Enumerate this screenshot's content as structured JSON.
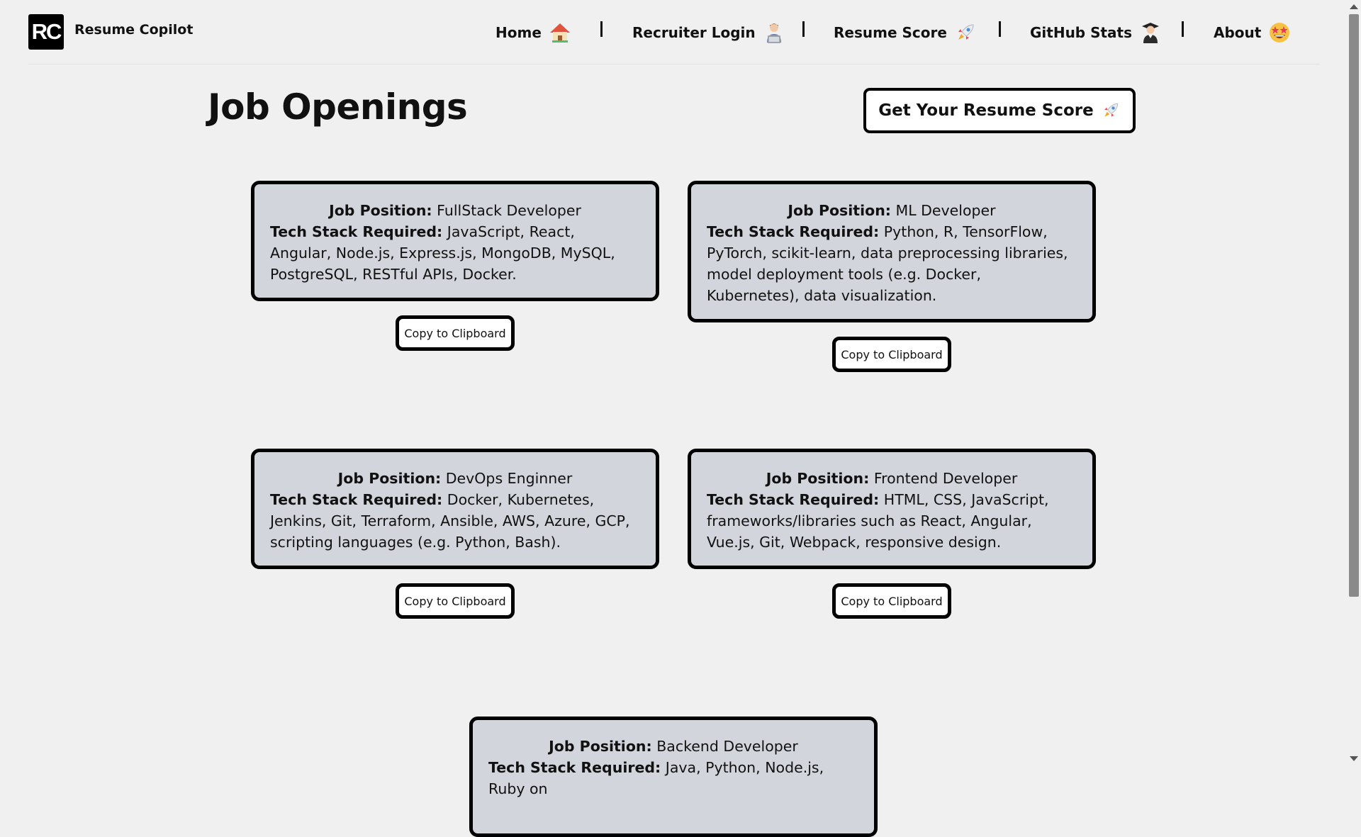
{
  "brand": {
    "logo_text": "RC",
    "name": "Resume Copilot"
  },
  "nav": {
    "items": [
      {
        "label": "Home",
        "icon": "house-emoji"
      },
      {
        "label": "Recruiter Login",
        "icon": "technologist-emoji"
      },
      {
        "label": "Resume Score",
        "icon": "rocket-emoji"
      },
      {
        "label": "GitHub Stats",
        "icon": "graduate-emoji"
      },
      {
        "label": "About",
        "icon": "star-struck-emoji"
      }
    ],
    "separator": "|"
  },
  "main": {
    "title": "Job Openings",
    "score_button": {
      "label": "Get Your Resume Score",
      "icon": "rocket-emoji"
    }
  },
  "labels": {
    "position_prefix": "Job Position:",
    "stack_prefix": "Tech Stack Required:",
    "copy": "Copy to Clipboard"
  },
  "jobs": [
    {
      "position": "FullStack Developer",
      "stack": "JavaScript, React, Angular, Node.js, Express.js, MongoDB, MySQL, PostgreSQL, RESTful APIs, Docker."
    },
    {
      "position": "ML Developer",
      "stack": "Python, R, TensorFlow, PyTorch, scikit-learn, data preprocessing libraries, model deployment tools (e.g. Docker, Kubernetes), data visualization."
    },
    {
      "position": "DevOps Enginner",
      "stack": "Docker, Kubernetes, Jenkins, Git, Terraform, Ansible, AWS, Azure, GCP, scripting languages (e.g. Python, Bash)."
    },
    {
      "position": "Frontend Developer",
      "stack": "HTML, CSS, JavaScript, frameworks/libraries such as React, Angular, Vue.js, Git, Webpack, responsive design."
    },
    {
      "position": "Backend Developer",
      "stack": "Java, Python, Node.js, Ruby on"
    }
  ]
}
